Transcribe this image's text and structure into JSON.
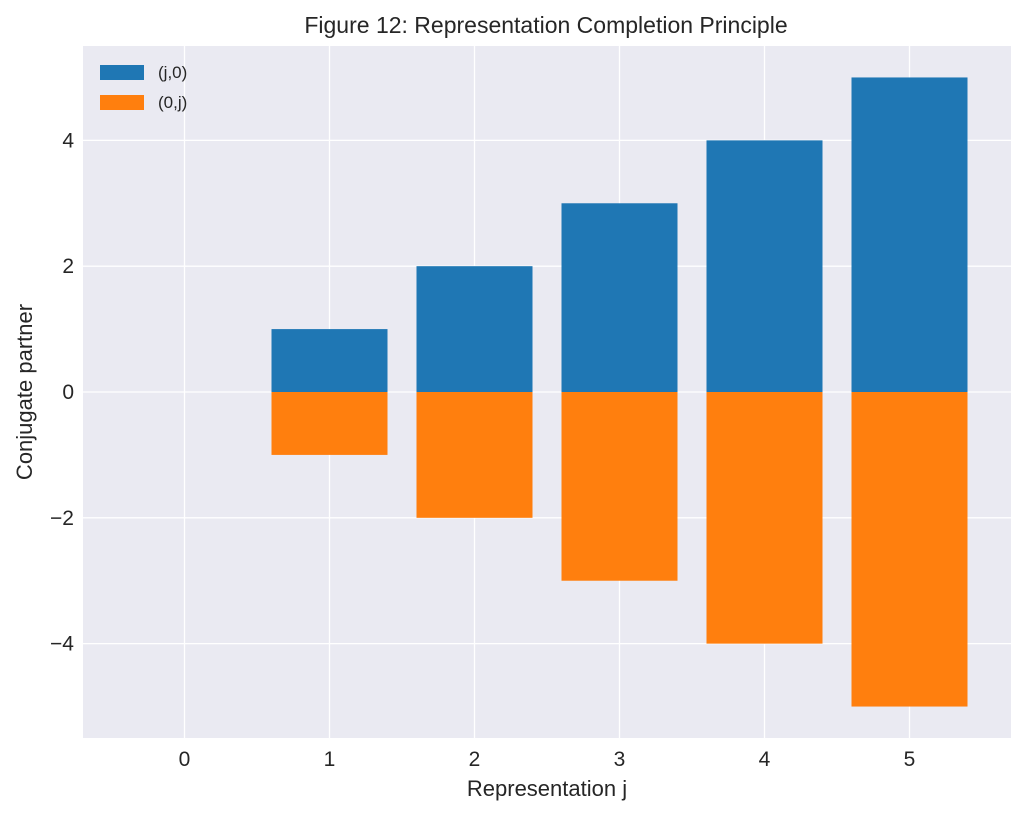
{
  "chart_data": {
    "type": "bar",
    "title": "Figure 12: Representation Completion Principle",
    "xlabel": "Representation j",
    "ylabel": "Conjugate partner",
    "categories": [
      "0",
      "1",
      "2",
      "3",
      "4",
      "5"
    ],
    "x": [
      0,
      1,
      2,
      3,
      4,
      5
    ],
    "series": [
      {
        "name": "(j,0)",
        "values": [
          0,
          1,
          2,
          3,
          4,
          5
        ],
        "color": "#1f77b4"
      },
      {
        "name": "(0,j)",
        "values": [
          0,
          -1,
          -2,
          -3,
          -4,
          -5
        ],
        "color": "#ff7f0e"
      }
    ],
    "xlim": [
      -0.7,
      5.7
    ],
    "ylim": [
      -5.5,
      5.5
    ],
    "yticks": [
      -4,
      -2,
      0,
      2,
      4
    ],
    "ytick_labels": [
      "−4",
      "−2",
      "0",
      "2",
      "4"
    ],
    "grid": true,
    "legend": "top-left",
    "colors": {
      "background": "#eaeaf2",
      "grid": "#ffffff",
      "text": "#262626"
    }
  }
}
